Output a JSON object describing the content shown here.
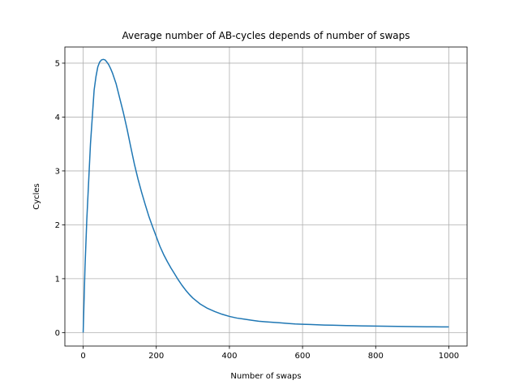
{
  "chart_data": {
    "type": "line",
    "title": "Average number of AB-cycles depends of number of swaps",
    "xlabel": "Number of swaps",
    "ylabel": "Cycles",
    "xlim": [
      -50,
      1050
    ],
    "ylim": [
      -0.25,
      5.3
    ],
    "xticks": [
      0,
      200,
      400,
      600,
      800,
      1000
    ],
    "yticks": [
      0,
      1,
      2,
      3,
      4,
      5
    ],
    "grid": true,
    "series": [
      {
        "color": "#1f77b4",
        "x": [
          0,
          5,
          10,
          15,
          20,
          25,
          30,
          35,
          40,
          45,
          50,
          55,
          60,
          65,
          70,
          75,
          80,
          90,
          100,
          110,
          120,
          130,
          140,
          150,
          160,
          170,
          180,
          190,
          200,
          210,
          220,
          230,
          240,
          250,
          260,
          270,
          280,
          290,
          300,
          320,
          340,
          360,
          380,
          400,
          420,
          440,
          460,
          480,
          500,
          520,
          540,
          560,
          580,
          600,
          620,
          640,
          660,
          680,
          700,
          720,
          740,
          760,
          780,
          800,
          820,
          840,
          860,
          880,
          900,
          920,
          940,
          960,
          980,
          1000
        ],
        "y": [
          0.0,
          1.2,
          2.1,
          2.8,
          3.5,
          4.0,
          4.5,
          4.75,
          4.93,
          5.02,
          5.06,
          5.07,
          5.06,
          5.02,
          4.97,
          4.9,
          4.82,
          4.62,
          4.35,
          4.08,
          3.78,
          3.45,
          3.13,
          2.85,
          2.6,
          2.37,
          2.15,
          1.96,
          1.78,
          1.6,
          1.45,
          1.32,
          1.2,
          1.09,
          0.98,
          0.88,
          0.79,
          0.71,
          0.64,
          0.53,
          0.45,
          0.39,
          0.34,
          0.3,
          0.27,
          0.25,
          0.23,
          0.21,
          0.2,
          0.19,
          0.18,
          0.17,
          0.16,
          0.155,
          0.15,
          0.145,
          0.14,
          0.137,
          0.134,
          0.13,
          0.127,
          0.125,
          0.123,
          0.12,
          0.118,
          0.116,
          0.114,
          0.112,
          0.11,
          0.109,
          0.108,
          0.107,
          0.106,
          0.105
        ]
      }
    ]
  }
}
